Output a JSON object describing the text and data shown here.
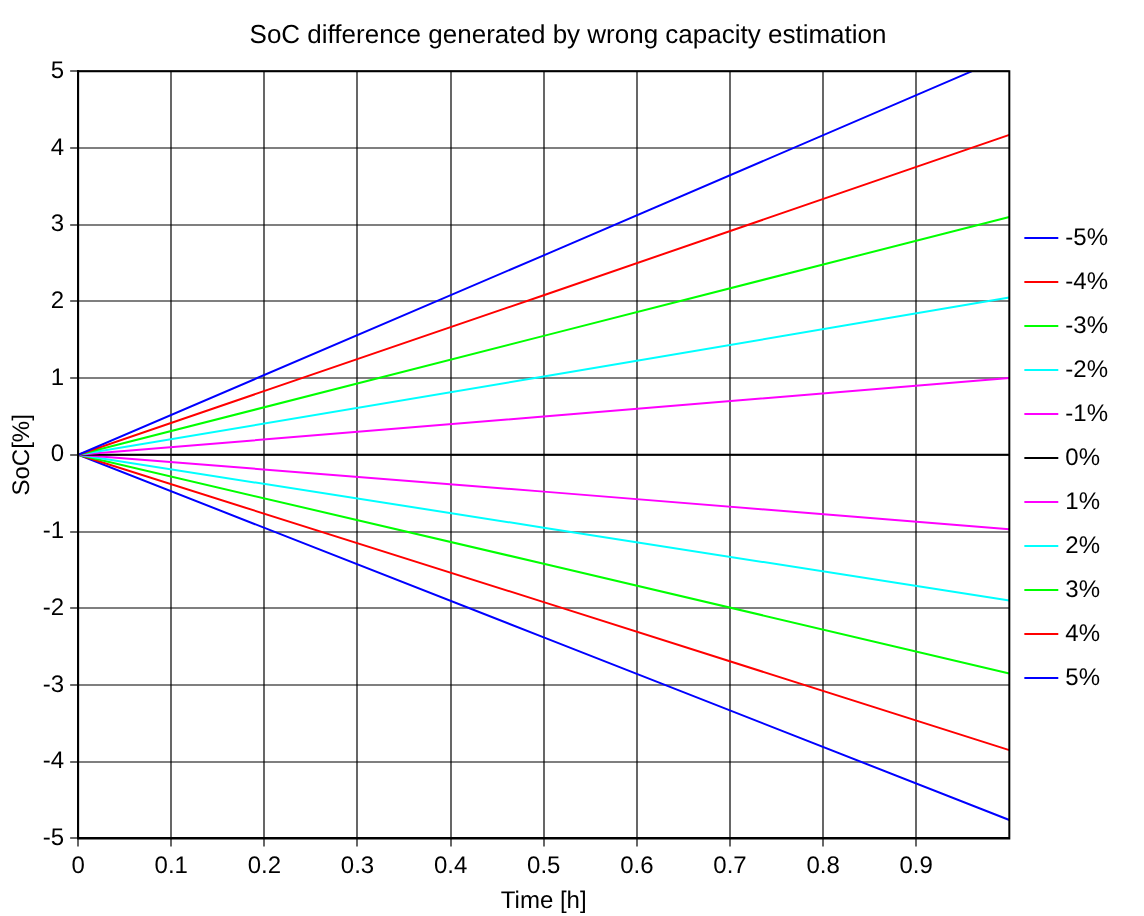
{
  "chart_data": {
    "type": "line",
    "title": "SoC difference generated by wrong capacity estimation",
    "xlabel": "Time [h]",
    "ylabel": "SoC[%]",
    "xlim": [
      0,
      1
    ],
    "xticks": [
      0,
      0.1,
      0.2,
      0.3,
      0.4,
      0.5,
      0.6,
      0.7,
      0.8,
      0.9
    ],
    "ylim": [
      -5,
      5
    ],
    "yticks": [
      -5,
      -4,
      -3,
      -2,
      -1,
      0,
      1,
      2,
      3,
      4,
      5
    ],
    "grid": true,
    "legend": "right",
    "marker": "none",
    "line_style": "solid",
    "series": [
      {
        "name": "-5%",
        "color": "#0000ff",
        "x": [
          0,
          0.5,
          0.96
        ],
        "values": [
          0,
          2.6,
          5
        ]
      },
      {
        "name": "-4%",
        "color": "#ff0000",
        "x": [
          0,
          0.5,
          1
        ],
        "values": [
          0,
          2.08,
          4.17
        ]
      },
      {
        "name": "-3%",
        "color": "#00ff00",
        "x": [
          0,
          0.5,
          1
        ],
        "values": [
          0,
          1.55,
          3.1
        ]
      },
      {
        "name": "-2%",
        "color": "#00ffff",
        "x": [
          0,
          0.5,
          1
        ],
        "values": [
          0,
          1.02,
          2.05
        ]
      },
      {
        "name": "-1%",
        "color": "#ff00ff",
        "x": [
          0,
          0.5,
          1
        ],
        "values": [
          0,
          0.5,
          1.0
        ]
      },
      {
        "name": "0%",
        "color": "#000000",
        "x": [
          0,
          0.5,
          1
        ],
        "values": [
          0,
          0,
          0
        ]
      },
      {
        "name": "1%",
        "color": "#ff00ff",
        "x": [
          0,
          0.5,
          1
        ],
        "values": [
          0,
          -0.48,
          -0.97
        ]
      },
      {
        "name": "2%",
        "color": "#00ffff",
        "x": [
          0,
          0.5,
          1
        ],
        "values": [
          0,
          -0.95,
          -1.9
        ]
      },
      {
        "name": "3%",
        "color": "#00ff00",
        "x": [
          0,
          0.5,
          1
        ],
        "values": [
          0,
          -1.42,
          -2.85
        ]
      },
      {
        "name": "4%",
        "color": "#ff0000",
        "x": [
          0,
          0.5,
          1
        ],
        "values": [
          0,
          -1.92,
          -3.85
        ]
      },
      {
        "name": "5%",
        "color": "#0000ff",
        "x": [
          0,
          0.5,
          1
        ],
        "values": [
          0,
          -2.38,
          -4.76
        ]
      }
    ]
  }
}
